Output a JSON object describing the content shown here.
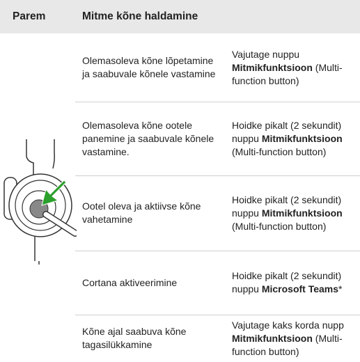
{
  "table": {
    "header": [
      "Parem",
      "Mitme kõne haldamine"
    ],
    "rows": [
      {
        "action": "Olemasoleva kõne lõpetamine ja saabuvale kõnele vastamine",
        "instruction": [
          {
            "text": "Vajutage nuppu"
          },
          {
            "text": "Mitmikfunktsioon",
            "bold": true
          },
          {
            "text": "(Multi-function button)"
          }
        ]
      },
      {
        "action": "Olemasoleva kõne ootele panemine ja saabuvale kõnele vastamine.",
        "instruction": [
          {
            "text": "Hoidke pikalt (2 sekundit) nuppu"
          },
          {
            "text": "Mitmikfunktsioon",
            "bold": true
          },
          {
            "text": "(Multi-function button)"
          }
        ]
      },
      {
        "action": "Ootel oleva ja aktiivse kõne vahetamine",
        "instruction": [
          {
            "text": "Hoidke pikalt (2 sekundit) nuppu"
          },
          {
            "text": "Mitmikfunktsioon",
            "bold": true
          },
          {
            "text": "(Multi-function button)"
          }
        ]
      },
      {
        "action": "Cortana aktiveerimine",
        "instruction": [
          {
            "text": "Hoidke pikalt (2 sekundit) nuppu"
          },
          {
            "text": "Microsoft Teams",
            "bold": true
          },
          {
            "text": "*"
          }
        ]
      },
      {
        "action": "Kõne ajal saabuva kõne tagasilükkamine",
        "instruction": [
          {
            "text": "Vajutage kaks korda nupp"
          },
          {
            "text": "Mitmikfunktsioon",
            "bold": true
          },
          {
            "text": "(Multi-function button)"
          }
        ]
      }
    ]
  }
}
